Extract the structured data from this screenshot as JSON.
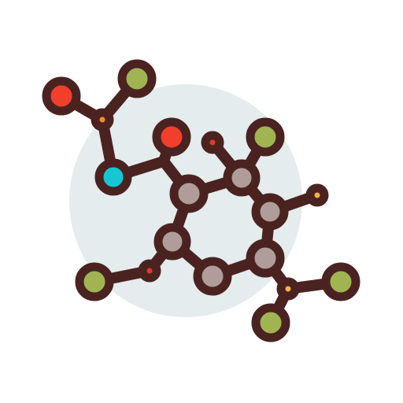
{
  "illustration": {
    "subject": "molecule-icon",
    "colors": {
      "outline": "#4a2321",
      "background_circle": "#e4eced",
      "atom_gray": "#b09d99",
      "atom_red": "#f23f2c",
      "atom_green": "#a0b452",
      "atom_cyan": "#14c7d2",
      "atom_orange": "#f58a2c",
      "atom_yellow": "#f5b53f",
      "atom_small_red": "#e33a2a"
    },
    "atoms": [
      {
        "name": "ring-atom-1",
        "kind": "ring",
        "color": "atom_gray"
      },
      {
        "name": "ring-atom-2",
        "kind": "ring",
        "color": "atom_gray"
      },
      {
        "name": "ring-atom-3",
        "kind": "ring",
        "color": "atom_gray"
      },
      {
        "name": "ring-atom-4",
        "kind": "ring",
        "color": "atom_gray"
      },
      {
        "name": "ring-atom-5",
        "kind": "ring",
        "color": "atom_gray"
      },
      {
        "name": "ring-atom-6",
        "kind": "ring",
        "color": "atom_gray"
      },
      {
        "name": "atom-red-top",
        "kind": "large",
        "color": "atom_red"
      },
      {
        "name": "atom-red-far",
        "kind": "large",
        "color": "atom_red"
      },
      {
        "name": "atom-green-top",
        "kind": "large",
        "color": "atom_green"
      },
      {
        "name": "atom-green-ring",
        "kind": "large",
        "color": "atom_green"
      },
      {
        "name": "atom-green-left",
        "kind": "large",
        "color": "atom_green"
      },
      {
        "name": "atom-green-right",
        "kind": "large",
        "color": "atom_green"
      },
      {
        "name": "atom-green-bottom",
        "kind": "large",
        "color": "atom_green"
      },
      {
        "name": "atom-cyan",
        "kind": "large",
        "color": "atom_cyan"
      },
      {
        "name": "atom-orange-small",
        "kind": "small",
        "color": "atom_orange"
      },
      {
        "name": "atom-red-small-top",
        "kind": "small",
        "color": "atom_small_red"
      },
      {
        "name": "atom-red-small-left",
        "kind": "small",
        "color": "atom_small_red"
      },
      {
        "name": "atom-yellow-small-right",
        "kind": "small",
        "color": "atom_yellow"
      },
      {
        "name": "atom-yellow-small-bottom",
        "kind": "small",
        "color": "atom_yellow"
      }
    ]
  }
}
